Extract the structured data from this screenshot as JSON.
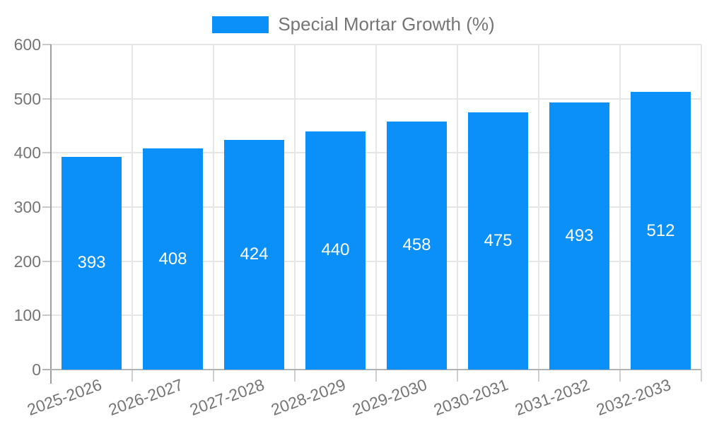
{
  "legend": {
    "swatch_color": "#0a90f8"
  },
  "chart_data": {
    "type": "bar",
    "title": "",
    "categories": [
      "2025-2026",
      "2026-2027",
      "2027-2028",
      "2028-2029",
      "2029-2030",
      "2030-2031",
      "2031-2032",
      "2032-2033"
    ],
    "series": [
      {
        "name": "Special Mortar Growth (%)",
        "values": [
          393,
          408,
          424,
          440,
          458,
          475,
          493,
          512
        ],
        "color": "#0a90f8"
      }
    ],
    "xlabel": "",
    "ylabel": "",
    "ylim": [
      0,
      600
    ],
    "yticks": [
      0,
      100,
      200,
      300,
      400,
      500,
      600
    ],
    "grid": true,
    "legend_position": "top",
    "bar_value_labels": true,
    "bar_value_label_color": "#ffffff"
  }
}
